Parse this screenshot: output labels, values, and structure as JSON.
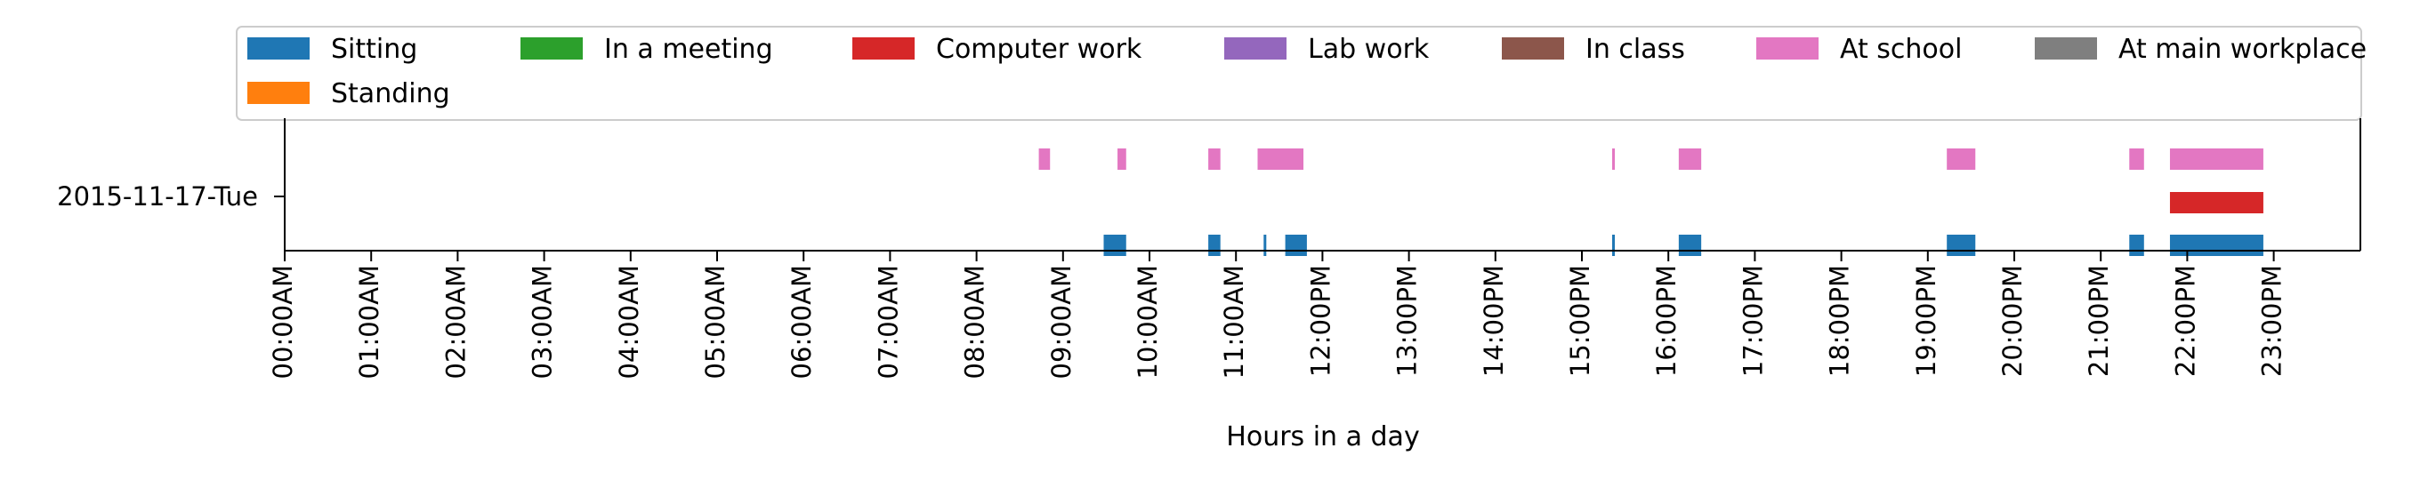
{
  "chart_data": {
    "type": "timeline",
    "xlabel": "Hours in a day",
    "xlim": [
      0,
      24
    ],
    "row_label": "2015-11-17-Tue",
    "xticks": [
      {
        "value": 0,
        "label": "00:00AM"
      },
      {
        "value": 1,
        "label": "01:00AM"
      },
      {
        "value": 2,
        "label": "02:00AM"
      },
      {
        "value": 3,
        "label": "03:00AM"
      },
      {
        "value": 4,
        "label": "04:00AM"
      },
      {
        "value": 5,
        "label": "05:00AM"
      },
      {
        "value": 6,
        "label": "06:00AM"
      },
      {
        "value": 7,
        "label": "07:00AM"
      },
      {
        "value": 8,
        "label": "08:00AM"
      },
      {
        "value": 9,
        "label": "09:00AM"
      },
      {
        "value": 10,
        "label": "10:00AM"
      },
      {
        "value": 11,
        "label": "11:00AM"
      },
      {
        "value": 12,
        "label": "12:00PM"
      },
      {
        "value": 13,
        "label": "13:00PM"
      },
      {
        "value": 14,
        "label": "14:00PM"
      },
      {
        "value": 15,
        "label": "15:00PM"
      },
      {
        "value": 16,
        "label": "16:00PM"
      },
      {
        "value": 17,
        "label": "17:00PM"
      },
      {
        "value": 18,
        "label": "18:00PM"
      },
      {
        "value": 19,
        "label": "19:00PM"
      },
      {
        "value": 20,
        "label": "20:00PM"
      },
      {
        "value": 21,
        "label": "21:00PM"
      },
      {
        "value": 22,
        "label": "22:00PM"
      },
      {
        "value": 23,
        "label": "23:00PM"
      }
    ],
    "legend": {
      "placement": "top",
      "entries": [
        {
          "name": "Sitting",
          "color": "#1f77b4"
        },
        {
          "name": "In a meeting",
          "color": "#2ca02c"
        },
        {
          "name": "Computer work",
          "color": "#d62728"
        },
        {
          "name": "Lab work",
          "color": "#9467bd"
        },
        {
          "name": "In class",
          "color": "#8c564b"
        },
        {
          "name": "At school",
          "color": "#e377c2"
        },
        {
          "name": "At main workplace",
          "color": "#7f7f7f"
        },
        {
          "name": "Standing",
          "color": "#ff7f0e"
        }
      ]
    },
    "series": [
      {
        "name": "At school",
        "color": "#e377c2",
        "intervals": [
          [
            8.72,
            8.85
          ],
          [
            9.63,
            9.73
          ],
          [
            10.68,
            10.82
          ],
          [
            11.25,
            11.78
          ],
          [
            15.35,
            15.38
          ],
          [
            16.12,
            16.38
          ],
          [
            19.22,
            19.55
          ],
          [
            21.33,
            21.5
          ],
          [
            21.8,
            22.88
          ]
        ]
      },
      {
        "name": "Computer work",
        "color": "#d62728",
        "intervals": [
          [
            21.8,
            22.88
          ]
        ]
      },
      {
        "name": "Sitting",
        "color": "#1f77b4",
        "intervals": [
          [
            9.47,
            9.73
          ],
          [
            10.68,
            10.82
          ],
          [
            11.32,
            11.35
          ],
          [
            11.57,
            11.82
          ],
          [
            15.35,
            15.38
          ],
          [
            16.12,
            16.38
          ],
          [
            19.22,
            19.55
          ],
          [
            21.33,
            21.5
          ],
          [
            21.8,
            22.88
          ]
        ]
      }
    ]
  }
}
